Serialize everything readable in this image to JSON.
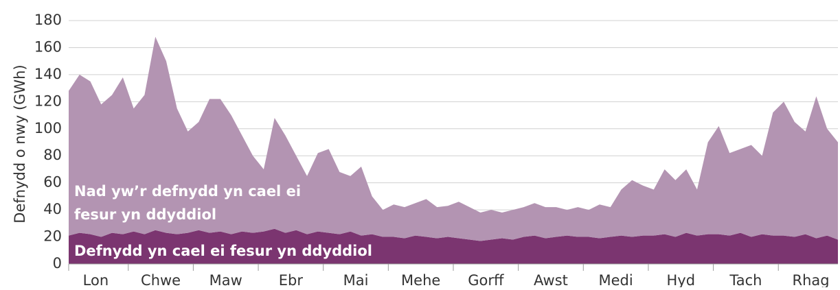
{
  "chart_data": {
    "type": "stacked_area",
    "ylabel": "Defnydd o nwy (GWh)",
    "categories": [
      null,
      null,
      "Lon",
      null,
      null,
      null,
      null,
      null,
      "Chwe",
      null,
      null,
      null,
      null,
      null,
      "Maw",
      null,
      null,
      null,
      null,
      null,
      "Ebr",
      null,
      null,
      null,
      null,
      null,
      "Mai",
      null,
      null,
      null,
      null,
      null,
      "Mehe",
      null,
      null,
      null,
      null,
      null,
      "Gorff",
      null,
      null,
      null,
      null,
      null,
      "Awst",
      null,
      null,
      null,
      null,
      null,
      "Medi",
      null,
      null,
      null,
      null,
      null,
      "Hyd",
      null,
      null,
      null,
      null,
      null,
      "Tach",
      null,
      null,
      null,
      null,
      null,
      "Rhag",
      null,
      null,
      null
    ],
    "series": [
      {
        "name": "Defnydd yn cael ei fesur yn ddyddiol",
        "color": "#7b3570",
        "values": [
          21,
          23,
          22,
          20,
          23,
          22,
          24,
          22,
          25,
          23,
          22,
          23,
          25,
          23,
          24,
          22,
          24,
          23,
          24,
          26,
          23,
          25,
          22,
          24,
          23,
          22,
          24,
          21,
          22,
          20,
          20,
          19,
          21,
          20,
          19,
          20,
          19,
          18,
          17,
          18,
          19,
          18,
          20,
          21,
          19,
          20,
          21,
          20,
          20,
          19,
          20,
          21,
          20,
          21,
          21,
          22,
          20,
          23,
          21,
          22,
          22,
          21,
          23,
          20,
          22,
          21,
          21,
          20,
          22,
          19,
          21,
          18
        ]
      },
      {
        "name": "Nad yw’r defnydd yn cael ei fesur yn ddyddiol",
        "color": "#b394b2",
        "values": [
          107,
          117,
          113,
          98,
          102,
          116,
          91,
          103,
          143,
          127,
          93,
          75,
          80,
          99,
          98,
          88,
          71,
          57,
          46,
          82,
          72,
          55,
          43,
          58,
          62,
          46,
          41,
          51,
          28,
          20,
          24,
          23,
          24,
          28,
          23,
          23,
          27,
          24,
          21,
          22,
          19,
          22,
          22,
          24,
          23,
          22,
          19,
          22,
          20,
          25,
          22,
          34,
          42,
          37,
          34,
          48,
          42,
          47,
          34,
          68,
          80,
          61,
          62,
          68,
          58,
          91,
          99,
          85,
          76,
          105,
          79,
          72
        ]
      }
    ],
    "ylim": [
      0,
      180
    ],
    "yticks": [
      0,
      20,
      40,
      60,
      80,
      100,
      120,
      140,
      160,
      180
    ],
    "grid": true
  }
}
